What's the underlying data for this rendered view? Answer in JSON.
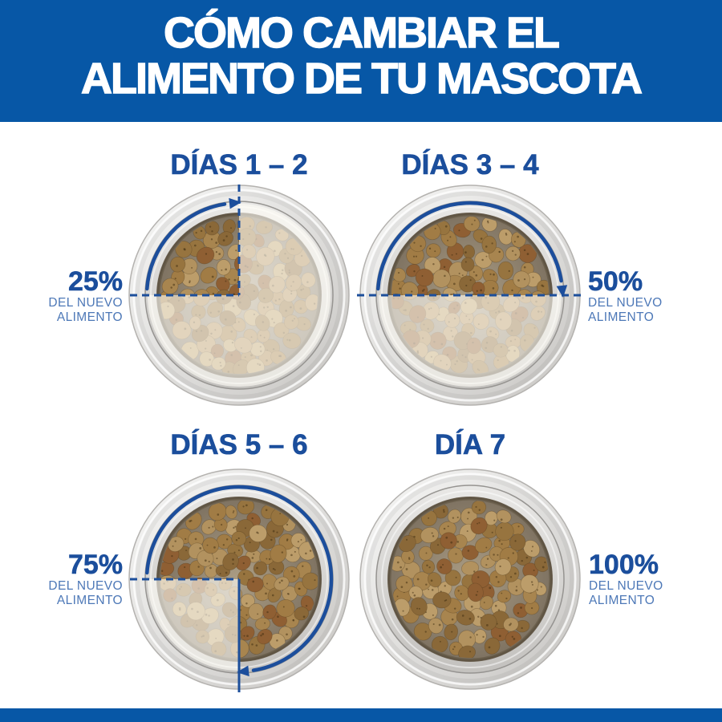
{
  "header": {
    "line1": "CÓMO CAMBIAR EL",
    "line2": "ALIMENTO DE TU MASCOTA"
  },
  "bowls": [
    {
      "title": "DÍAS 1 – 2",
      "percent": 25,
      "percent_label": "25%",
      "sub_line1": "DEL NUEVO",
      "sub_line2": "ALIMENTO",
      "label_side": "left"
    },
    {
      "title": "DÍAS 3 – 4",
      "percent": 50,
      "percent_label": "50%",
      "sub_line1": "DEL NUEVO",
      "sub_line2": "ALIMENTO",
      "label_side": "right"
    },
    {
      "title": "DÍAS 5 – 6",
      "percent": 75,
      "percent_label": "75%",
      "sub_line1": "DEL NUEVO",
      "sub_line2": "ALIMENTO",
      "label_side": "left"
    },
    {
      "title": "DÍA 7",
      "percent": 100,
      "percent_label": "100%",
      "sub_line1": "DEL NUEVO",
      "sub_line2": "ALIMENTO",
      "label_side": "right"
    }
  ],
  "colors": {
    "banner_bg": "#0757a6",
    "title_blue": "#1b4e9c",
    "percent_blue": "#1b4e9c",
    "sub_blue": "#4d78b7",
    "line_blue": "#1d4f9b",
    "arc_blue": "#1c4e9c",
    "new_kibble_palette": [
      "#a8854f",
      "#97743f",
      "#b2925f",
      "#8a6838",
      "#a17c45",
      "#bc9d6a",
      "#8f5f33"
    ],
    "fade_overlay": "rgba(255,253,247,0.62)"
  }
}
